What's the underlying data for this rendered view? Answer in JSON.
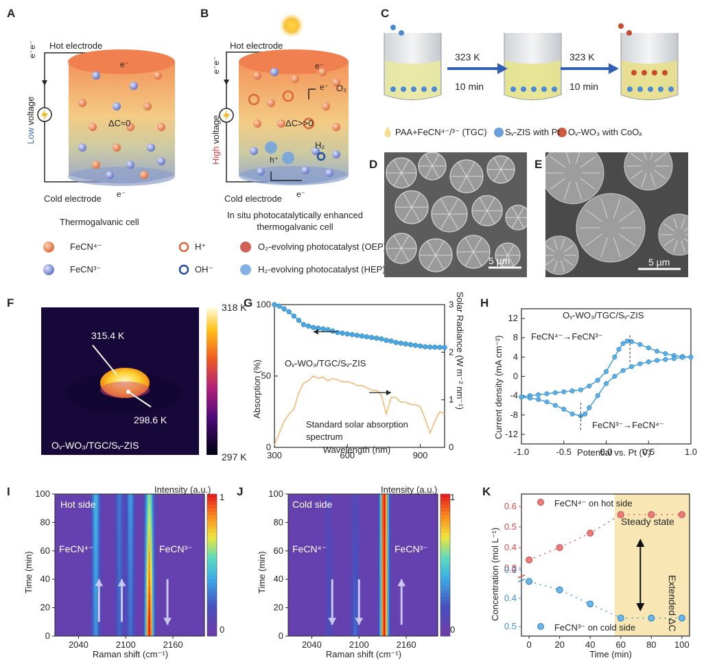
{
  "panels": {
    "A": {
      "label": "A",
      "hot": "Hot electrode",
      "cold": "Cold electrode",
      "voltage_word": "Low",
      "voltage_rest": " voltage",
      "dc": "ΔC≈0",
      "e_top": "e⁻",
      "e_bottom": "e⁻",
      "e_wire": "e⁻e⁻",
      "caption": "Thermogalvanic cell"
    },
    "B": {
      "label": "B",
      "hot": "Hot electrode",
      "cold": "Cold electrode",
      "voltage_word": "High",
      "voltage_rest": " voltage",
      "dc": "ΔC>>0",
      "o2": "O₂",
      "h2": "H₂",
      "h_plus": "h⁺",
      "e_top": "e⁻",
      "e_mid": "e⁻",
      "e_bottom": "e⁻",
      "e_wire": "e⁻e⁻",
      "caption1": "In situ photocatalytically enhanced",
      "caption2": "thermogalvanic cell"
    },
    "legend_AB": [
      {
        "label": "FeCN⁴⁻",
        "icon": "orange-sphere-icon"
      },
      {
        "label": "H⁺",
        "icon": "orange-ring-icon"
      },
      {
        "label": "O₂-evolving photocatalyst (OEP)",
        "icon": "red-cluster-icon"
      },
      {
        "label": "FeCN³⁻",
        "icon": "blue-sphere-icon"
      },
      {
        "label": "OH⁻",
        "icon": "blue-ring-icon"
      },
      {
        "label": "H₂-evolving photocatalyst (HEP)",
        "icon": "blue-cluster-icon"
      }
    ],
    "C": {
      "label": "C",
      "step1_temp": "323 K",
      "step1_time": "10 min",
      "step2_temp": "323 K",
      "step2_time": "10 min",
      "legend1": "PAA+FeCN⁴⁻/³⁻ (TGC)",
      "legend2": "Sᵥ-ZIS with Pt",
      "legend3": "Oᵥ-WO₃ with CoOₓ"
    },
    "D": {
      "label": "D",
      "scale": "5 µm"
    },
    "E": {
      "label": "E",
      "scale": "5 µm"
    },
    "F": {
      "label": "F",
      "max": "318 K",
      "min": "297 K",
      "hot_val": "315.4 K",
      "cold_val": "298.6 K",
      "sample": "Oᵥ-WO₃/TGC/Sᵥ-ZIS"
    },
    "G": {
      "label": "G",
      "xlabel": "Wavelength (nm)",
      "ylabel_left": "Absorption (%)",
      "ylabel_right": "Solar Radiance (W m⁻² nm⁻¹)",
      "sample": "Oᵥ-WO₃/TGC/Sᵥ-ZIS",
      "solar1": "Standard solar absorption",
      "solar2": "spectrum"
    },
    "H": {
      "label": "H",
      "xlabel": "Potential vs. Pt (V)",
      "ylabel": "Current density (mA cm⁻²)",
      "sample": "Oᵥ-WO₃/TGC/Sᵥ-ZIS",
      "ox": "FeCN⁴⁻→FeCN³⁻",
      "red": "FeCN³⁻→FeCN⁴⁻"
    },
    "I": {
      "label": "I",
      "side": "Hot side",
      "left_species": "FeCN⁴⁻",
      "right_species": "FeCN³⁻",
      "xlabel": "Raman shift (cm⁻¹)",
      "ylabel": "Time (min)",
      "cbar_title": "Intensity (a.u.)",
      "cbar_max": "1",
      "cbar_min": "0"
    },
    "J": {
      "label": "J",
      "side": "Cold side",
      "left_species": "FeCN⁴⁻",
      "right_species": "FeCN³⁻",
      "xlabel": "Raman shift (cm⁻¹)",
      "ylabel": "Time (min)",
      "cbar_title": "Intensity (a.u.)",
      "cbar_max": "1",
      "cbar_min": "0"
    },
    "K": {
      "label": "K",
      "xlabel": "Time (min)",
      "ylabel": "Concentration (mol L⁻¹)",
      "hot_legend": "FeCN⁴⁻ on hot side",
      "cold_legend": "FeCN³⁻ on cold side",
      "steady": "Steady state",
      "extended": "Extended ΔC"
    }
  },
  "colors": {
    "orange": "#e8824a",
    "blue_sphere": "#7f8fd6",
    "red_series": "#e05a5a",
    "blue_series": "#3b9bd6",
    "cv_blue": "#4aa3dc",
    "steady_fill": "#f8e6b4"
  },
  "chart_data": [
    {
      "type": "line",
      "id": "G",
      "xlabel": "Wavelength (nm)",
      "ylabel": "Absorption (%)",
      "xlim": [
        300,
        1000
      ],
      "ylim": [
        0,
        100
      ],
      "x_ticks": [
        300,
        600,
        900
      ],
      "y_ticks": [
        0,
        50,
        100
      ],
      "y2_ticks": [
        0,
        1,
        2,
        3
      ],
      "y2lim": [
        0,
        3
      ],
      "series": [
        {
          "name": "Oᵥ-WO₃/TGC/Sᵥ-ZIS",
          "axis": "left",
          "x": [
            300,
            320,
            340,
            360,
            380,
            400,
            420,
            440,
            460,
            480,
            500,
            520,
            540,
            560,
            580,
            600,
            620,
            640,
            660,
            680,
            700,
            720,
            740,
            760,
            780,
            800,
            820,
            840,
            860,
            880,
            900,
            920,
            940,
            960,
            980,
            1000
          ],
          "y": [
            100,
            99,
            97,
            95,
            92,
            89,
            86,
            85,
            84,
            83.5,
            83,
            82.5,
            81.5,
            80.5,
            80,
            79.5,
            79,
            78.5,
            78,
            77.5,
            77,
            76.5,
            76,
            75,
            74.5,
            73.5,
            73,
            72.5,
            72,
            71.5,
            71,
            70.5,
            70.3,
            70.2,
            70.1,
            70
          ]
        },
        {
          "name": "Standard solar absorption spectrum",
          "axis": "right",
          "x": [
            300,
            320,
            340,
            360,
            380,
            400,
            420,
            440,
            460,
            480,
            500,
            520,
            540,
            560,
            580,
            600,
            620,
            640,
            660,
            680,
            700,
            720,
            740,
            760,
            780,
            800,
            820,
            840,
            860,
            880,
            900,
            920,
            940,
            960,
            980,
            1000
          ],
          "y": [
            0.05,
            0.3,
            0.55,
            0.7,
            0.8,
            1.15,
            1.35,
            1.4,
            1.5,
            1.45,
            1.48,
            1.4,
            1.45,
            1.42,
            1.38,
            1.38,
            1.35,
            1.3,
            1.3,
            1.25,
            1.2,
            1.2,
            1.1,
            0.7,
            1.05,
            1.05,
            0.95,
            0.95,
            0.9,
            0.9,
            0.85,
            0.6,
            0.3,
            0.55,
            0.75,
            0.7
          ]
        }
      ]
    },
    {
      "type": "line",
      "id": "H",
      "xlabel": "Potential vs. Pt (V)",
      "ylabel": "Current density (mA cm⁻²)",
      "xlim": [
        -1.0,
        1.0
      ],
      "ylim": [
        -14,
        14
      ],
      "x_ticks": [
        -1.0,
        -0.5,
        0.0,
        0.5,
        1.0
      ],
      "y_ticks": [
        -12,
        -8,
        -4,
        0,
        4,
        8,
        12
      ],
      "series": [
        {
          "name": "Oᵥ-WO₃/TGC/Sᵥ-ZIS",
          "x": [
            -1.0,
            -0.9,
            -0.8,
            -0.7,
            -0.6,
            -0.5,
            -0.4,
            -0.3,
            -0.2,
            -0.1,
            0.0,
            0.1,
            0.15,
            0.2,
            0.25,
            0.3,
            0.4,
            0.5,
            0.6,
            0.7,
            0.8,
            0.9,
            1.0,
            0.9,
            0.8,
            0.7,
            0.6,
            0.5,
            0.4,
            0.3,
            0.2,
            0.1,
            0.0,
            -0.1,
            -0.2,
            -0.25,
            -0.3,
            -0.4,
            -0.5,
            -0.6,
            -0.7,
            -0.8,
            -0.9,
            -1.0
          ],
          "y": [
            -4.3,
            -4.0,
            -3.8,
            -3.6,
            -3.4,
            -3.2,
            -3.0,
            -2.8,
            -2.0,
            -0.8,
            1.0,
            4.0,
            5.6,
            6.8,
            7.3,
            7.2,
            6.6,
            5.9,
            5.2,
            4.7,
            4.3,
            4.1,
            4.0,
            3.9,
            3.7,
            3.5,
            3.3,
            3.0,
            2.6,
            2.0,
            1.2,
            0.0,
            -1.5,
            -4.0,
            -6.5,
            -7.8,
            -8.2,
            -7.8,
            -6.8,
            -6.0,
            -5.3,
            -4.8,
            -4.5,
            -4.3
          ]
        }
      ]
    },
    {
      "type": "heatmap",
      "id": "I",
      "xlabel": "Raman shift (cm⁻¹)",
      "ylabel": "Time (min)",
      "xlim": [
        2010,
        2200
      ],
      "ylim": [
        0,
        100
      ],
      "x_ticks": [
        2040,
        2100,
        2160
      ],
      "y_ticks": [
        0,
        20,
        40,
        60,
        80,
        100
      ],
      "peaks": [
        {
          "x": 2062,
          "start": 0.3,
          "end": 0.4
        },
        {
          "x": 2092,
          "start": 0.2,
          "end": 0.25
        },
        {
          "x": 2106,
          "start": 0.22,
          "end": 0.33
        },
        {
          "x": 2130,
          "start": 1.0,
          "end": 0.55
        }
      ]
    },
    {
      "type": "heatmap",
      "id": "J",
      "xlabel": "Raman shift (cm⁻¹)",
      "ylabel": "Time (min)",
      "xlim": [
        2010,
        2200
      ],
      "ylim": [
        0,
        100
      ],
      "x_ticks": [
        2040,
        2100,
        2160
      ],
      "y_ticks": [
        0,
        20,
        40,
        60,
        80,
        100
      ],
      "peaks": [
        {
          "x": 2062,
          "start": 0.12,
          "end": 0.08
        },
        {
          "x": 2095,
          "start": 0.22,
          "end": 0.1
        },
        {
          "x": 2132,
          "start": 0.95,
          "end": 1.0
        }
      ]
    },
    {
      "type": "scatter",
      "id": "K",
      "xlabel": "Time (min)",
      "ylabel": "Concentration (mol L⁻¹)",
      "xlim": [
        -5,
        105
      ],
      "x_ticks": [
        0,
        20,
        40,
        60,
        80,
        100
      ],
      "upper_y_ticks": [
        0.3,
        0.4,
        0.5,
        0.6
      ],
      "lower_y_ticks": [
        0.5,
        0.4,
        0.3
      ],
      "break_tick": "0",
      "series": [
        {
          "name": "FeCN⁴⁻ on hot side",
          "segment": "upper",
          "x": [
            0,
            20,
            40,
            60,
            80,
            100
          ],
          "y": [
            0.34,
            0.4,
            0.47,
            0.56,
            0.56,
            0.56
          ]
        },
        {
          "name": "FeCN³⁻ on cold side",
          "segment": "lower",
          "x": [
            0,
            20,
            40,
            60,
            80,
            100
          ],
          "y": [
            0.34,
            0.37,
            0.42,
            0.47,
            0.47,
            0.47
          ]
        }
      ],
      "steady_from": 60
    }
  ]
}
